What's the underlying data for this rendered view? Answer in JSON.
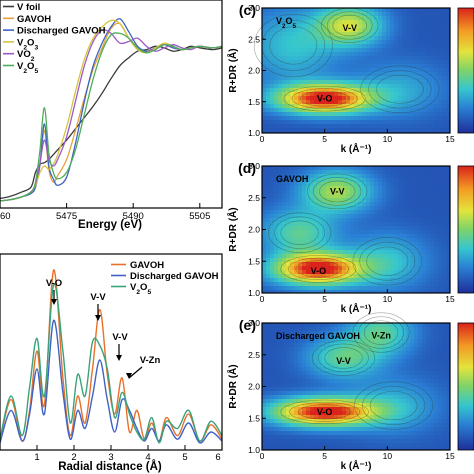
{
  "chart_data": [
    {
      "type": "line",
      "panel": "a",
      "xlabel": "Energy (eV)",
      "xlim": [
        5460,
        5510
      ],
      "xticks": [
        "5460",
        "5475",
        "5490",
        "5505"
      ],
      "xtick_values": [
        5460,
        5475,
        5490,
        5505
      ],
      "series": [
        {
          "name": "V foil",
          "color": "#3a3a3a",
          "x": [
            5458,
            5462,
            5465,
            5467,
            5468,
            5469,
            5470,
            5471,
            5472,
            5473,
            5475,
            5477,
            5479,
            5481,
            5483,
            5485,
            5487,
            5489,
            5491,
            5493,
            5495,
            5497,
            5499,
            5501,
            5503,
            5505,
            5508,
            5510
          ],
          "y": [
            0.05,
            0.07,
            0.1,
            0.13,
            0.22,
            0.27,
            0.28,
            0.3,
            0.33,
            0.36,
            0.42,
            0.49,
            0.56,
            0.63,
            0.71,
            0.8,
            0.88,
            0.93,
            0.97,
            0.98,
            1.0,
            0.99,
            0.97,
            0.98,
            1.0,
            0.99,
            0.98,
            0.99
          ]
        },
        {
          "name": "GAVOH",
          "color": "#e8a23c",
          "x": [
            5458,
            5462,
            5465,
            5467,
            5468,
            5469,
            5470,
            5471,
            5472,
            5473,
            5475,
            5477,
            5479,
            5481,
            5483,
            5485,
            5487,
            5489,
            5491,
            5493,
            5495,
            5497,
            5499,
            5501,
            5503,
            5505,
            5508,
            5510
          ],
          "y": [
            0.04,
            0.05,
            0.07,
            0.09,
            0.13,
            0.27,
            0.48,
            0.24,
            0.16,
            0.2,
            0.3,
            0.48,
            0.68,
            0.86,
            0.99,
            1.11,
            1.14,
            1.05,
            0.98,
            0.97,
            0.99,
            1.01,
            0.99,
            0.98,
            0.99,
            1.0,
            0.99,
            1.0
          ]
        },
        {
          "name": "Discharged GAVOH",
          "color": "#3f63c4",
          "x": [
            5458,
            5462,
            5465,
            5467,
            5468,
            5469,
            5470,
            5471,
            5472,
            5473,
            5475,
            5477,
            5479,
            5481,
            5483,
            5485,
            5487,
            5489,
            5491,
            5493,
            5495,
            5497,
            5499,
            5501,
            5503,
            5505,
            5508,
            5510
          ],
          "y": [
            0.04,
            0.05,
            0.07,
            0.09,
            0.13,
            0.27,
            0.52,
            0.26,
            0.18,
            0.14,
            0.19,
            0.4,
            0.66,
            0.88,
            1.02,
            1.12,
            1.17,
            1.09,
            1.0,
            0.97,
            0.99,
            1.01,
            0.99,
            0.98,
            0.99,
            1.0,
            0.99,
            1.0
          ]
        },
        {
          "name": "V2O3",
          "color": "#d8c43c",
          "x": [
            5458,
            5462,
            5465,
            5467,
            5468,
            5469,
            5470,
            5471,
            5472,
            5473,
            5475,
            5477,
            5479,
            5481,
            5483,
            5485,
            5487,
            5489,
            5491,
            5493,
            5495,
            5497,
            5499,
            5501,
            5503,
            5505,
            5508,
            5510
          ],
          "y": [
            0.04,
            0.05,
            0.07,
            0.1,
            0.14,
            0.22,
            0.26,
            0.24,
            0.27,
            0.33,
            0.5,
            0.72,
            0.92,
            1.05,
            1.12,
            1.16,
            1.14,
            1.05,
            0.98,
            0.96,
            0.99,
            1.02,
            1.0,
            0.98,
            0.99,
            1.0,
            0.99,
            1.0
          ]
        },
        {
          "name": "VO2",
          "color": "#9a5ac8",
          "x": [
            5458,
            5462,
            5465,
            5467,
            5468,
            5469,
            5470,
            5471,
            5472,
            5473,
            5475,
            5477,
            5479,
            5481,
            5483,
            5485,
            5487,
            5489,
            5491,
            5493,
            5495,
            5497,
            5499,
            5501,
            5503,
            5505,
            5508,
            5510
          ],
          "y": [
            0.04,
            0.05,
            0.07,
            0.1,
            0.15,
            0.28,
            0.42,
            0.3,
            0.26,
            0.3,
            0.44,
            0.66,
            0.88,
            1.03,
            1.1,
            1.08,
            1.02,
            1.03,
            1.05,
            1.0,
            0.97,
            0.99,
            1.01,
            0.99,
            0.98,
            1.0,
            0.99,
            1.0
          ]
        },
        {
          "name": "V2O5",
          "color": "#4fae5a",
          "x": [
            5458,
            5462,
            5465,
            5467,
            5468,
            5469,
            5470,
            5471,
            5472,
            5473,
            5475,
            5477,
            5479,
            5481,
            5483,
            5485,
            5487,
            5489,
            5491,
            5493,
            5495,
            5497,
            5499,
            5501,
            5503,
            5505,
            5508,
            5510
          ],
          "y": [
            0.04,
            0.05,
            0.07,
            0.1,
            0.16,
            0.36,
            0.62,
            0.34,
            0.22,
            0.18,
            0.22,
            0.36,
            0.58,
            0.8,
            0.97,
            1.07,
            1.08,
            1.05,
            0.99,
            0.96,
            0.98,
            1.01,
            1.0,
            0.98,
            0.99,
            1.0,
            0.99,
            1.0
          ]
        }
      ]
    },
    {
      "type": "line",
      "panel": "b",
      "xlabel": "Radial distance (Å)",
      "xlim": [
        0,
        6
      ],
      "xticks": [
        "1",
        "2",
        "3",
        "4",
        "5",
        "6"
      ],
      "xtick_values": [
        1,
        2,
        3,
        4,
        5,
        6
      ],
      "annotations": [
        "V-O",
        "V-V",
        "V-V",
        "V-Zn"
      ],
      "series": [
        {
          "name": "GAVOH",
          "color": "#e8702a",
          "x": [
            0,
            0.3,
            0.6,
            0.8,
            1.0,
            1.2,
            1.45,
            1.7,
            1.9,
            2.1,
            2.3,
            2.5,
            2.7,
            2.9,
            3.1,
            3.3,
            3.5,
            3.7,
            3.9,
            4.1,
            4.3,
            4.5,
            4.8,
            5.1,
            5.4,
            5.7,
            6.0
          ],
          "y": [
            0.05,
            0.28,
            0.05,
            0.22,
            0.55,
            0.25,
            1.0,
            0.4,
            0.08,
            0.3,
            0.15,
            0.45,
            0.78,
            0.42,
            0.2,
            0.4,
            0.1,
            0.22,
            0.06,
            0.15,
            0.05,
            0.18,
            0.08,
            0.2,
            0.05,
            0.14,
            0.06
          ]
        },
        {
          "name": "Discharged GAVOH",
          "color": "#3f63c4",
          "x": [
            0,
            0.3,
            0.6,
            0.8,
            1.0,
            1.2,
            1.45,
            1.7,
            1.9,
            2.1,
            2.3,
            2.5,
            2.7,
            2.9,
            3.1,
            3.3,
            3.5,
            3.7,
            3.9,
            4.1,
            4.3,
            4.5,
            4.8,
            5.1,
            5.4,
            5.7,
            6.0
          ],
          "y": [
            0.04,
            0.22,
            0.05,
            0.2,
            0.45,
            0.2,
            0.72,
            0.32,
            0.06,
            0.22,
            0.12,
            0.3,
            0.5,
            0.28,
            0.1,
            0.28,
            0.22,
            0.12,
            0.05,
            0.12,
            0.05,
            0.14,
            0.06,
            0.15,
            0.04,
            0.1,
            0.05
          ]
        },
        {
          "name": "V2O5",
          "color": "#3aa37a",
          "x": [
            0,
            0.3,
            0.6,
            0.8,
            1.0,
            1.2,
            1.45,
            1.7,
            1.9,
            2.1,
            2.3,
            2.5,
            2.7,
            2.9,
            3.1,
            3.3,
            3.5,
            3.7,
            3.9,
            4.1,
            4.3,
            4.5,
            4.8,
            5.1,
            5.4,
            5.7,
            6.0
          ],
          "y": [
            0.06,
            0.3,
            0.08,
            0.35,
            0.62,
            0.3,
            0.92,
            0.55,
            0.15,
            0.42,
            0.3,
            0.6,
            0.58,
            0.45,
            0.18,
            0.32,
            0.2,
            0.1,
            0.06,
            0.18,
            0.04,
            0.16,
            0.12,
            0.22,
            0.05,
            0.16,
            0.08
          ]
        }
      ]
    },
    {
      "type": "heatmap",
      "panel": "c",
      "inset_label": "V2O5",
      "xlabel": "k (Å⁻¹)",
      "ylabel": "R+DR (Å)",
      "xlim": [
        0,
        15
      ],
      "ylim": [
        1.0,
        3.0
      ],
      "xticks": [
        "0",
        "5",
        "10",
        "15"
      ],
      "yticks": [
        "1.0",
        "1.5",
        "2.0",
        "2.5",
        "3.0"
      ],
      "annotations": [
        {
          "text": "V-O",
          "k": 5.0,
          "r": 1.55
        },
        {
          "text": "V-V",
          "k": 7.0,
          "r": 2.68
        }
      ],
      "peaks": [
        {
          "k": 5.0,
          "r": 1.55,
          "sk": 2.6,
          "sr": 0.16,
          "a": 1.0
        },
        {
          "k": 7.0,
          "r": 2.72,
          "sk": 1.8,
          "sr": 0.22,
          "a": 0.55
        },
        {
          "k": 2.5,
          "r": 2.4,
          "sk": 2.5,
          "sr": 0.4,
          "a": 0.25
        },
        {
          "k": 11.0,
          "r": 1.7,
          "sk": 2.5,
          "sr": 0.3,
          "a": 0.18
        }
      ]
    },
    {
      "type": "heatmap",
      "panel": "d",
      "inset_label": "GAVOH",
      "xlabel": "k (Å⁻¹)",
      "ylabel": "R+DR (Å)",
      "xlim": [
        0,
        15
      ],
      "ylim": [
        1.0,
        3.0
      ],
      "xticks": [
        "0",
        "5",
        "10",
        "15"
      ],
      "yticks": [
        "1.0",
        "1.5",
        "2.0",
        "2.5",
        "3.0"
      ],
      "annotations": [
        {
          "text": "V-O",
          "k": 4.5,
          "r": 1.35
        },
        {
          "text": "V-V",
          "k": 6.0,
          "r": 2.6
        }
      ],
      "peaks": [
        {
          "k": 4.5,
          "r": 1.38,
          "sk": 2.4,
          "sr": 0.17,
          "a": 1.0
        },
        {
          "k": 6.0,
          "r": 2.6,
          "sk": 1.9,
          "sr": 0.22,
          "a": 0.5
        },
        {
          "k": 3.0,
          "r": 1.95,
          "sk": 2.0,
          "sr": 0.25,
          "a": 0.35
        },
        {
          "k": 10.0,
          "r": 1.5,
          "sk": 2.2,
          "sr": 0.3,
          "a": 0.25
        }
      ]
    },
    {
      "type": "heatmap",
      "panel": "e",
      "inset_label": "Discharged GAVOH",
      "xlabel": "k (Å⁻¹)",
      "ylabel": "R+DR (Å)",
      "xlim": [
        0,
        15
      ],
      "ylim": [
        1.0,
        3.0
      ],
      "xticks": [
        "0",
        "5",
        "10",
        "15"
      ],
      "yticks": [
        "1.0",
        "1.5",
        "2.0",
        "2.5",
        "3.0"
      ],
      "annotations": [
        {
          "text": "V-O",
          "k": 5.0,
          "r": 1.6
        },
        {
          "text": "V-V",
          "k": 6.5,
          "r": 2.4
        },
        {
          "text": "V-Zn",
          "k": 9.5,
          "r": 2.8
        }
      ],
      "peaks": [
        {
          "k": 5.0,
          "r": 1.6,
          "sk": 2.8,
          "sr": 0.15,
          "a": 1.0
        },
        {
          "k": 6.5,
          "r": 2.45,
          "sk": 2.0,
          "sr": 0.22,
          "a": 0.35
        },
        {
          "k": 9.5,
          "r": 2.85,
          "sk": 1.8,
          "sr": 0.25,
          "a": 0.35
        },
        {
          "k": 10.5,
          "r": 1.7,
          "sk": 2.5,
          "sr": 0.3,
          "a": 0.2
        }
      ]
    }
  ],
  "panel_labels": {
    "c": "(c)",
    "d": "(d)",
    "e": "(e)"
  },
  "legend_a": [
    "V foil",
    "GAVOH",
    "Discharged GAVOH",
    "V2O3",
    "VO2",
    "V2O5"
  ],
  "legend_b": [
    "GAVOH",
    "Discharged GAVOH",
    "V2O5"
  ],
  "colors": {
    "colormap": [
      "#1e2f9a",
      "#2a7fd4",
      "#35c6cf",
      "#7dd36a",
      "#e3e43c",
      "#f39a23",
      "#d9231c"
    ]
  }
}
